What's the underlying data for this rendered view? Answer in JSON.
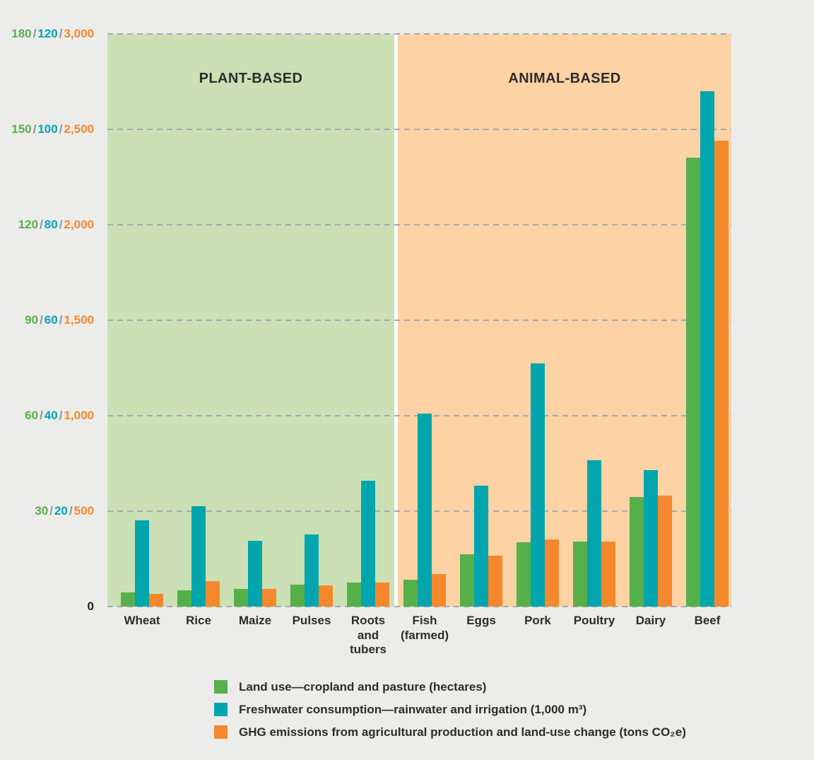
{
  "chart_data": {
    "type": "bar",
    "categories": [
      "Wheat",
      "Rice",
      "Maize",
      "Pulses",
      "Roots\nand\ntubers",
      "Fish\n(farmed)",
      "Eggs",
      "Pork",
      "Poultry",
      "Dairy",
      "Beef"
    ],
    "panels": [
      {
        "label": "PLANT-BASED",
        "bg": "#cbe0b4",
        "category_count": 5
      },
      {
        "label": "ANIMAL-BASED",
        "bg": "#fdd2a5",
        "category_count": 6
      }
    ],
    "series": [
      {
        "name": "Land use—cropland and pasture (hectares)",
        "color": "#56b04a",
        "axis_max": 180,
        "tick_step": 30,
        "values": [
          4.4,
          5.1,
          5.5,
          6.8,
          7.6,
          8.5,
          16.5,
          20.2,
          20.4,
          34.5,
          141
        ]
      },
      {
        "name": "Freshwater consumption—rainwater and irrigation (1,000 m³)",
        "color": "#00a5ae",
        "axis_max": 120,
        "tick_step": 20,
        "values": [
          18,
          21,
          13.8,
          15.1,
          26.4,
          40.5,
          25.4,
          51,
          30.6,
          28.6,
          108
        ]
      },
      {
        "name": "GHG emissions from agricultural production and land-use change (tons CO₂e)",
        "color": "#f5882c",
        "axis_max": 3000,
        "tick_step": 500,
        "values": [
          65,
          135,
          94,
          110,
          127,
          172,
          265,
          352,
          342,
          580,
          2440
        ]
      }
    ],
    "y_ticks": [
      [
        "180",
        "120",
        "3,000"
      ],
      [
        "150",
        "100",
        "2,500"
      ],
      [
        "120",
        "80",
        "2,000"
      ],
      [
        "90",
        "60",
        "1,500"
      ],
      [
        "60",
        "40",
        "1,000"
      ],
      [
        "30",
        "20",
        "500"
      ]
    ],
    "y_zero_label": "0",
    "tick_separator": "/",
    "grid": true,
    "legend_position": "bottom"
  },
  "colors": {
    "page_bg": "#ececea",
    "grid_line": "#a4aab2",
    "text_dark": "#2d2c2a",
    "tick_slash": "#8f9092",
    "zero_label": "#1d1d1b",
    "panel_divider": "#ffffff"
  }
}
